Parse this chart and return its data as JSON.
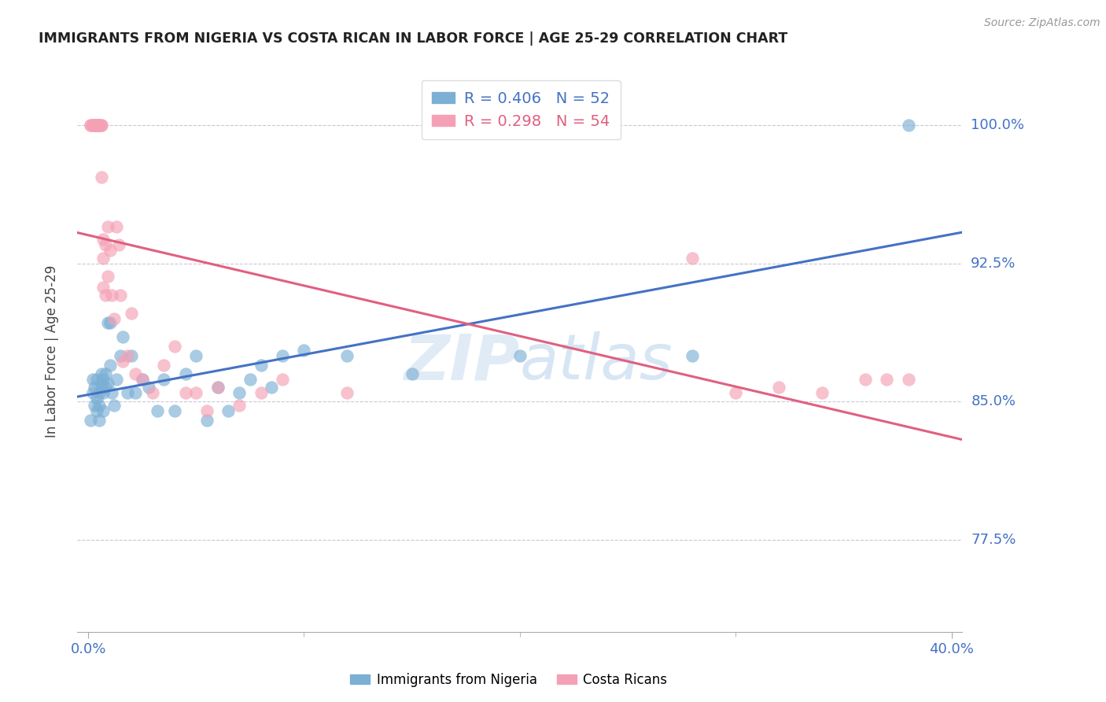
{
  "title": "IMMIGRANTS FROM NIGERIA VS COSTA RICAN IN LABOR FORCE | AGE 25-29 CORRELATION CHART",
  "source": "Source: ZipAtlas.com",
  "ylabel": "In Labor Force | Age 25-29",
  "yticks": [
    0.775,
    0.85,
    0.925,
    1.0
  ],
  "ytick_labels": [
    "77.5%",
    "85.0%",
    "92.5%",
    "100.0%"
  ],
  "legend_blue_r": "R = 0.406",
  "legend_blue_n": "N = 52",
  "legend_pink_r": "R = 0.298",
  "legend_pink_n": "N = 54",
  "blue_color": "#7BAFD4",
  "pink_color": "#F4A0B5",
  "blue_line_color": "#4472C4",
  "pink_line_color": "#E06080",
  "title_color": "#222222",
  "axis_label_color": "#4472C4",
  "grid_color": "#C8C8D8",
  "blue_scatter_x": [
    0.001,
    0.002,
    0.002,
    0.003,
    0.003,
    0.004,
    0.004,
    0.004,
    0.005,
    0.005,
    0.005,
    0.006,
    0.006,
    0.006,
    0.007,
    0.007,
    0.007,
    0.008,
    0.008,
    0.009,
    0.009,
    0.01,
    0.01,
    0.011,
    0.012,
    0.013,
    0.015,
    0.016,
    0.018,
    0.02,
    0.022,
    0.025,
    0.028,
    0.032,
    0.035,
    0.04,
    0.045,
    0.05,
    0.055,
    0.06,
    0.065,
    0.07,
    0.075,
    0.08,
    0.085,
    0.09,
    0.1,
    0.12,
    0.15,
    0.2,
    0.28,
    0.38
  ],
  "blue_scatter_y": [
    0.84,
    0.855,
    0.862,
    0.848,
    0.858,
    0.852,
    0.862,
    0.845,
    0.855,
    0.848,
    0.84,
    0.858,
    0.865,
    0.86,
    0.855,
    0.845,
    0.862,
    0.858,
    0.865,
    0.86,
    0.893,
    0.893,
    0.87,
    0.855,
    0.848,
    0.862,
    0.875,
    0.885,
    0.855,
    0.875,
    0.855,
    0.862,
    0.858,
    0.845,
    0.862,
    0.845,
    0.865,
    0.875,
    0.84,
    0.858,
    0.845,
    0.855,
    0.862,
    0.87,
    0.858,
    0.875,
    0.878,
    0.875,
    0.865,
    0.875,
    0.875,
    1.0
  ],
  "pink_scatter_x": [
    0.001,
    0.001,
    0.002,
    0.002,
    0.003,
    0.003,
    0.003,
    0.004,
    0.004,
    0.004,
    0.004,
    0.005,
    0.005,
    0.005,
    0.005,
    0.006,
    0.006,
    0.006,
    0.007,
    0.007,
    0.007,
    0.008,
    0.008,
    0.009,
    0.009,
    0.01,
    0.011,
    0.012,
    0.013,
    0.014,
    0.015,
    0.016,
    0.018,
    0.02,
    0.022,
    0.025,
    0.03,
    0.035,
    0.04,
    0.045,
    0.05,
    0.055,
    0.06,
    0.07,
    0.08,
    0.09,
    0.12,
    0.28,
    0.3,
    0.32,
    0.34,
    0.36,
    0.37,
    0.38
  ],
  "pink_scatter_y": [
    1.0,
    1.0,
    1.0,
    1.0,
    1.0,
    1.0,
    1.0,
    1.0,
    1.0,
    1.0,
    1.0,
    1.0,
    1.0,
    1.0,
    1.0,
    1.0,
    1.0,
    0.972,
    0.938,
    0.928,
    0.912,
    0.935,
    0.908,
    0.945,
    0.918,
    0.932,
    0.908,
    0.895,
    0.945,
    0.935,
    0.908,
    0.872,
    0.875,
    0.898,
    0.865,
    0.862,
    0.855,
    0.87,
    0.88,
    0.855,
    0.855,
    0.845,
    0.858,
    0.848,
    0.855,
    0.862,
    0.855,
    0.928,
    0.855,
    0.858,
    0.855,
    0.862,
    0.862,
    0.862
  ],
  "xlim": [
    -0.005,
    0.405
  ],
  "ylim": [
    0.725,
    1.03
  ],
  "xtick_positions": [
    0.0,
    0.4
  ],
  "xtick_labels": [
    "0.0%",
    "40.0%"
  ]
}
